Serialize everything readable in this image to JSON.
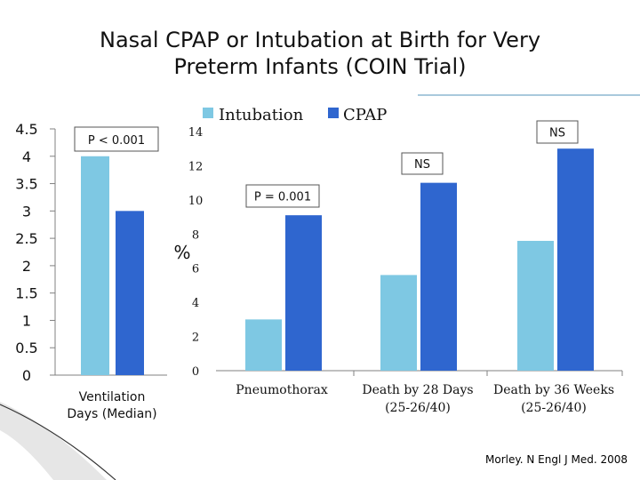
{
  "title_line1": "Nasal CPAP or Intubation at Birth for Very",
  "title_line2": "Preterm Infants (COIN Trial)",
  "citation": "Morley. N Engl J Med. 2008",
  "colors": {
    "intubation": "#7ec8e3",
    "cpap": "#2f66cf",
    "axis": "#808080",
    "accent_rule": "#a9c9dc"
  },
  "chart_data": [
    {
      "type": "bar",
      "categories": [
        [
          "Ventilation",
          "Days (Median)"
        ]
      ],
      "series": [
        {
          "name": "Intubation",
          "values": [
            4
          ]
        },
        {
          "name": "CPAP",
          "values": [
            3
          ]
        }
      ],
      "ylim": [
        0,
        4.5
      ],
      "yticks": [
        "0",
        "0.5",
        "1",
        "1.5",
        "2",
        "2.5",
        "3",
        "3.5",
        "4",
        "4.5"
      ],
      "annotations": [
        "P < 0.001"
      ]
    },
    {
      "type": "bar",
      "categories": [
        [
          "Pneumothorax"
        ],
        [
          "Death by 28 Days",
          "(25-26/40)"
        ],
        [
          "Death by 36 Weeks",
          "(25-26/40)"
        ]
      ],
      "series": [
        {
          "name": "Intubation",
          "values": [
            3,
            5.6,
            7.6
          ]
        },
        {
          "name": "CPAP",
          "values": [
            9.1,
            11.0,
            13.0
          ]
        }
      ],
      "ylabel": "%",
      "ylim": [
        0,
        14
      ],
      "yticks": [
        "0",
        "2",
        "4",
        "6",
        "8",
        "10",
        "12",
        "14"
      ],
      "legend": [
        "Intubation",
        "CPAP"
      ],
      "annotations": [
        "P = 0.001",
        "NS",
        "NS"
      ]
    }
  ]
}
